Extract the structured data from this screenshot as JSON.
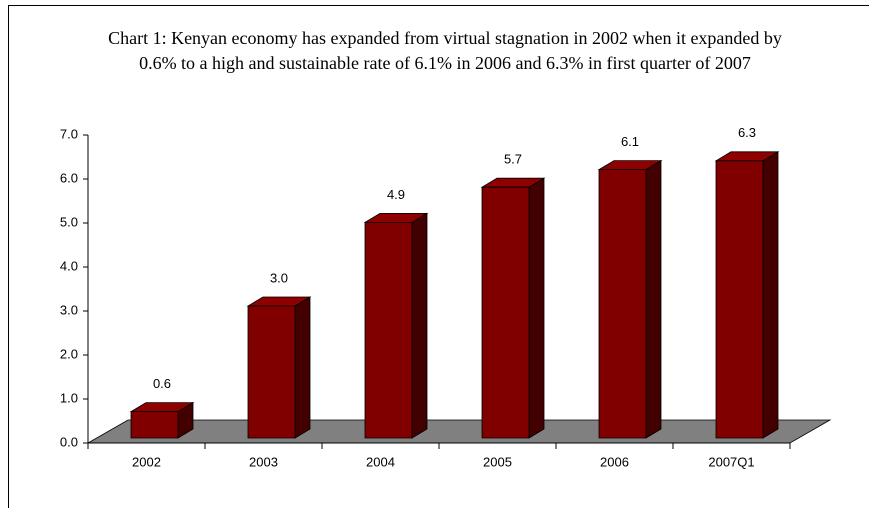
{
  "chart_data": {
    "type": "bar3d",
    "title": "Chart 1: Kenyan economy has expanded from virtual stagnation in 2002 when it expanded by 0.6% to a high and sustainable rate of 6.1% in 2006 and 6.3% in first quarter of 2007",
    "categories": [
      "2002",
      "2003",
      "2004",
      "2005",
      "2006",
      "2007Q1"
    ],
    "values": [
      0.6,
      3.0,
      4.9,
      5.7,
      6.1,
      6.3
    ],
    "value_labels": [
      "0.6",
      "3.0",
      "4.9",
      "5.7",
      "6.1",
      "6.3"
    ],
    "color": "#800000",
    "ylim": [
      0,
      7
    ],
    "yticks": [
      {
        "value": 0,
        "label": "0.0"
      },
      {
        "value": 1,
        "label": "1.0"
      },
      {
        "value": 2,
        "label": "2.0"
      },
      {
        "value": 3,
        "label": "3.0"
      },
      {
        "value": 4,
        "label": "4.0"
      },
      {
        "value": 5,
        "label": "5.0"
      },
      {
        "value": 6,
        "label": "6.0"
      },
      {
        "value": 7,
        "label": "7.0"
      }
    ]
  }
}
